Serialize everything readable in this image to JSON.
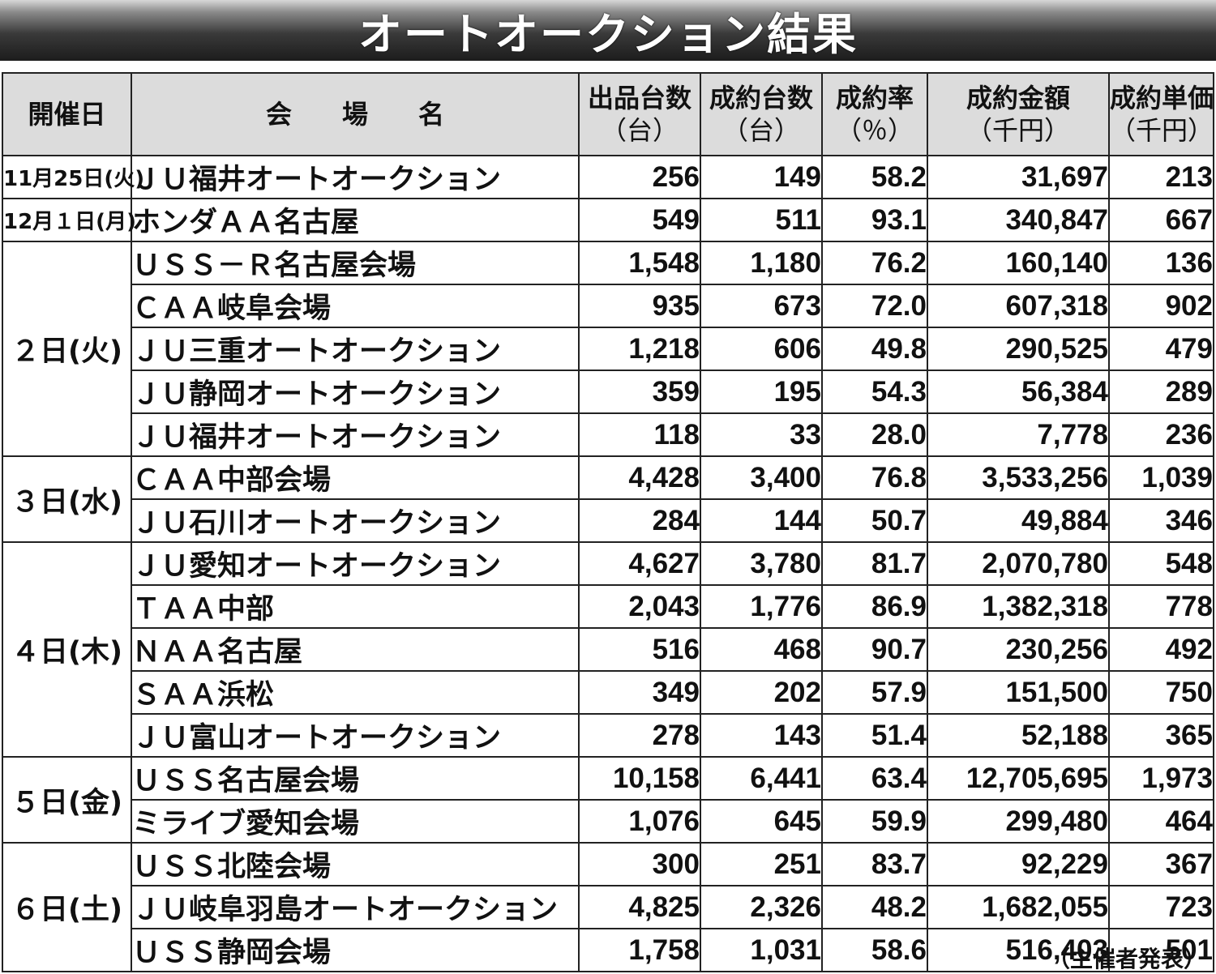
{
  "title": "オートオークション結果",
  "headers": [
    {
      "main": "開催日",
      "sub": ""
    },
    {
      "main": "会場名",
      "sub": ""
    },
    {
      "main": "出品台数",
      "sub": "（台）"
    },
    {
      "main": "成約台数",
      "sub": "（台）"
    },
    {
      "main": "成約率",
      "sub": "（％）"
    },
    {
      "main": "成約金額",
      "sub": "（千円）"
    },
    {
      "main": "成約単価",
      "sub": "（千円）"
    }
  ],
  "groups": [
    {
      "date": "11月25日(火)",
      "rows": [
        {
          "venue": "ＪＵ福井オートオークション",
          "listed": "256",
          "sold": "149",
          "rate": "58.2",
          "amount": "31,697",
          "unit": "213"
        }
      ]
    },
    {
      "date": "12月１日(月)",
      "rows": [
        {
          "venue": "ホンダＡＡ名古屋",
          "listed": "549",
          "sold": "511",
          "rate": "93.1",
          "amount": "340,847",
          "unit": "667"
        }
      ]
    },
    {
      "date": "２日(火)",
      "rows": [
        {
          "venue": "ＵＳＳ－Ｒ名古屋会場",
          "listed": "1,548",
          "sold": "1,180",
          "rate": "76.2",
          "amount": "160,140",
          "unit": "136"
        },
        {
          "venue": "ＣＡＡ岐阜会場",
          "listed": "935",
          "sold": "673",
          "rate": "72.0",
          "amount": "607,318",
          "unit": "902"
        },
        {
          "venue": "ＪＵ三重オートオークション",
          "listed": "1,218",
          "sold": "606",
          "rate": "49.8",
          "amount": "290,525",
          "unit": "479"
        },
        {
          "venue": "ＪＵ静岡オートオークション",
          "listed": "359",
          "sold": "195",
          "rate": "54.3",
          "amount": "56,384",
          "unit": "289"
        },
        {
          "venue": "ＪＵ福井オートオークション",
          "listed": "118",
          "sold": "33",
          "rate": "28.0",
          "amount": "7,778",
          "unit": "236"
        }
      ]
    },
    {
      "date": "３日(水)",
      "rows": [
        {
          "venue": "ＣＡＡ中部会場",
          "listed": "4,428",
          "sold": "3,400",
          "rate": "76.8",
          "amount": "3,533,256",
          "unit": "1,039"
        },
        {
          "venue": "ＪＵ石川オートオークション",
          "listed": "284",
          "sold": "144",
          "rate": "50.7",
          "amount": "49,884",
          "unit": "346"
        }
      ]
    },
    {
      "date": "４日(木)",
      "rows": [
        {
          "venue": "ＪＵ愛知オートオークション",
          "listed": "4,627",
          "sold": "3,780",
          "rate": "81.7",
          "amount": "2,070,780",
          "unit": "548"
        },
        {
          "venue": "ＴＡＡ中部",
          "listed": "2,043",
          "sold": "1,776",
          "rate": "86.9",
          "amount": "1,382,318",
          "unit": "778"
        },
        {
          "venue": "ＮＡＡ名古屋",
          "listed": "516",
          "sold": "468",
          "rate": "90.7",
          "amount": "230,256",
          "unit": "492"
        },
        {
          "venue": "ＳＡＡ浜松",
          "listed": "349",
          "sold": "202",
          "rate": "57.9",
          "amount": "151,500",
          "unit": "750"
        },
        {
          "venue": "ＪＵ富山オートオークション",
          "listed": "278",
          "sold": "143",
          "rate": "51.4",
          "amount": "52,188",
          "unit": "365"
        }
      ]
    },
    {
      "date": "５日(金)",
      "rows": [
        {
          "venue": "ＵＳＳ名古屋会場",
          "listed": "10,158",
          "sold": "6,441",
          "rate": "63.4",
          "amount": "12,705,695",
          "unit": "1,973"
        },
        {
          "venue": "ミライブ愛知会場",
          "listed": "1,076",
          "sold": "645",
          "rate": "59.9",
          "amount": "299,480",
          "unit": "464"
        }
      ]
    },
    {
      "date": "６日(土)",
      "rows": [
        {
          "venue": "ＵＳＳ北陸会場",
          "listed": "300",
          "sold": "251",
          "rate": "83.7",
          "amount": "92,229",
          "unit": "367"
        },
        {
          "venue": "ＪＵ岐阜羽島オートオークション",
          "listed": "4,825",
          "sold": "2,326",
          "rate": "48.2",
          "amount": "1,682,055",
          "unit": "723"
        },
        {
          "venue": "ＵＳＳ静岡会場",
          "listed": "1,758",
          "sold": "1,031",
          "rate": "58.6",
          "amount": "516,403",
          "unit": "501"
        }
      ]
    }
  ],
  "footer": "（主催者発表）"
}
